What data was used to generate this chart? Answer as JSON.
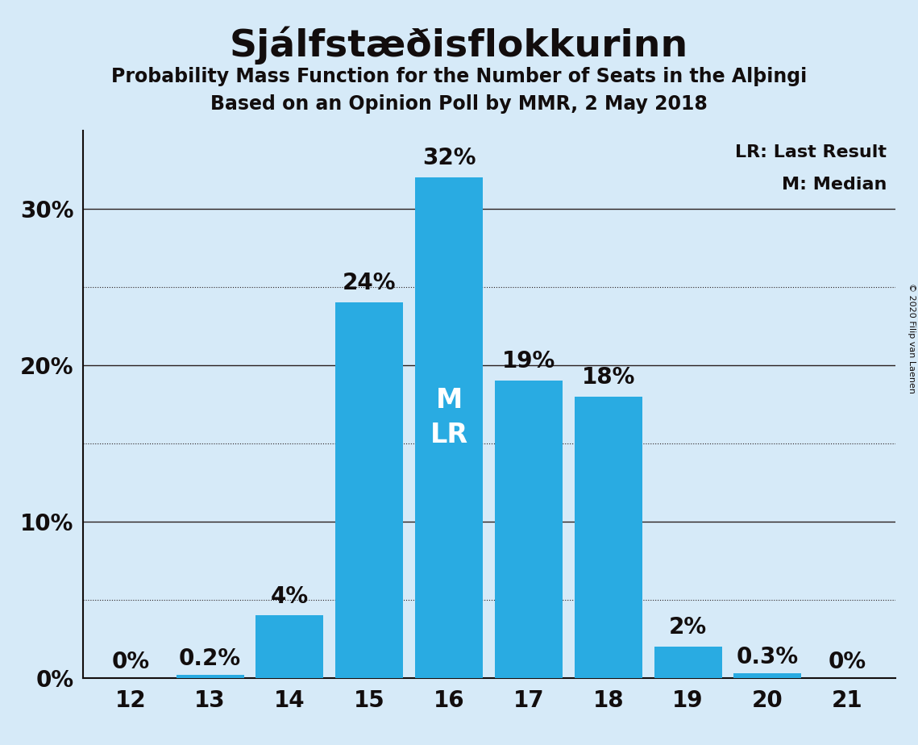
{
  "title": "Sjálfstæðisflokkurinn",
  "subtitle1": "Probability Mass Function for the Number of Seats in the Alþingi",
  "subtitle2": "Based on an Opinion Poll by MMR, 2 May 2018",
  "copyright": "© 2020 Filip van Laenen",
  "seats": [
    12,
    13,
    14,
    15,
    16,
    17,
    18,
    19,
    20,
    21
  ],
  "probabilities": [
    0.0,
    0.2,
    4.0,
    24.0,
    32.0,
    19.0,
    18.0,
    2.0,
    0.3,
    0.0
  ],
  "labels": [
    "0%",
    "0.2%",
    "4%",
    "24%",
    "32%",
    "19%",
    "18%",
    "2%",
    "0.3%",
    "0%"
  ],
  "bar_color": "#29ABE2",
  "background_color": "#D6EAF8",
  "text_color": "#120d0d",
  "median_seat": 16,
  "last_result_seat": 16,
  "median_label": "M",
  "lr_label": "LR",
  "legend_text": [
    "LR: Last Result",
    "M: Median"
  ],
  "ylim": [
    0,
    35
  ],
  "solid_grid": [
    10,
    20,
    30
  ],
  "dotted_grid": [
    5,
    15,
    25
  ],
  "ytick_positions": [
    0,
    10,
    20,
    30
  ],
  "ytick_labels": [
    "0%",
    "10%",
    "20%",
    "30%"
  ],
  "title_fontsize": 34,
  "subtitle_fontsize": 17,
  "tick_fontsize": 20,
  "bar_label_fontsize": 20,
  "inner_label_fontsize": 24,
  "legend_fontsize": 16
}
